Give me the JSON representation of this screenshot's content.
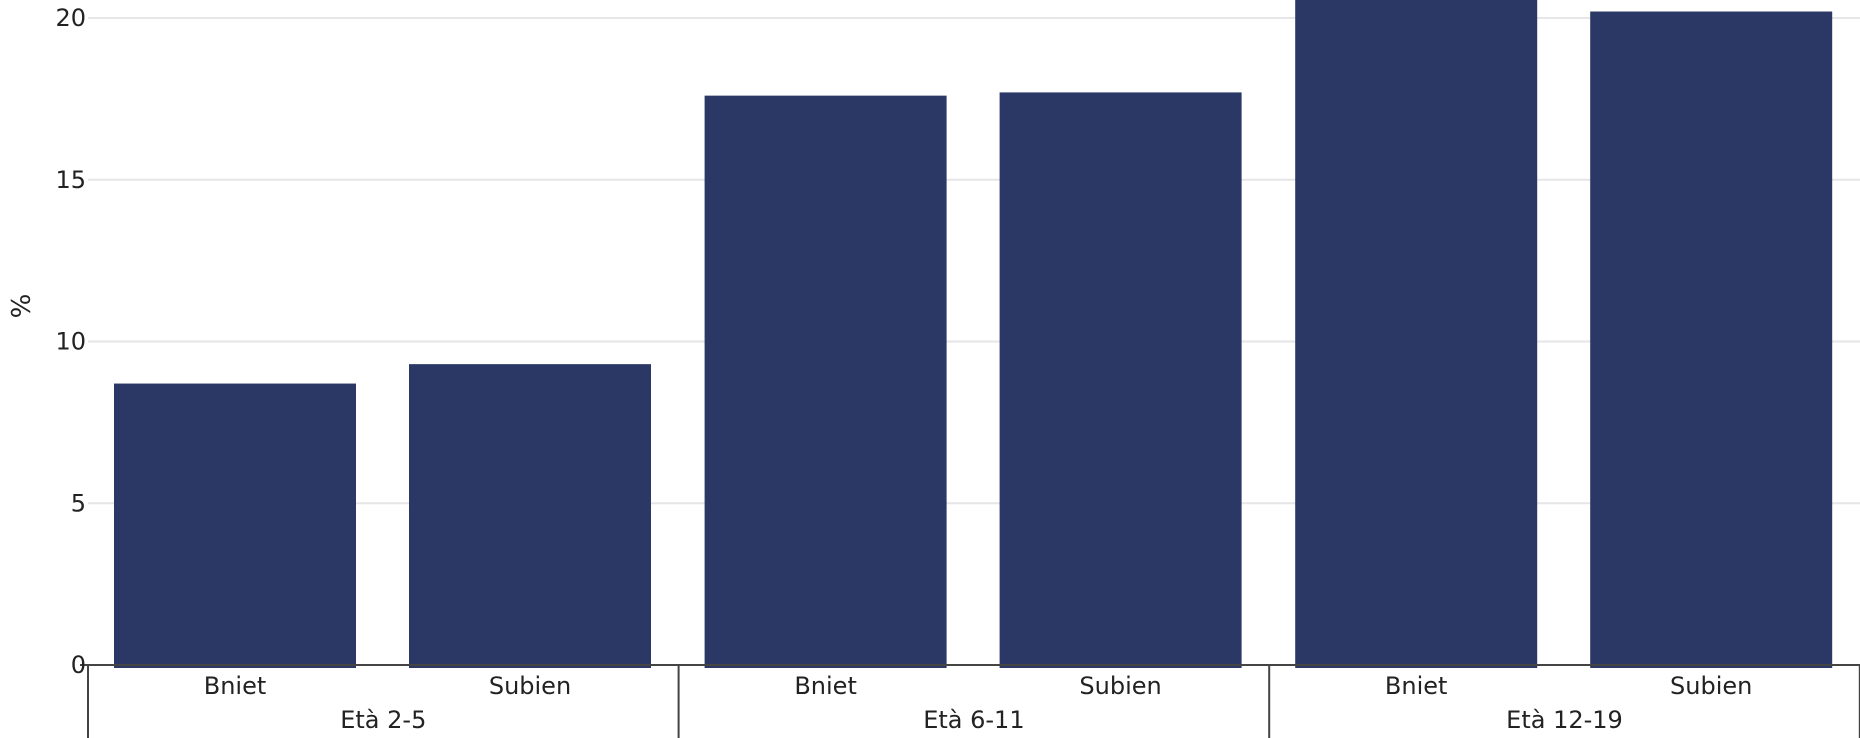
{
  "chart_data": {
    "type": "bar",
    "ylabel": "%",
    "ylim": [
      0,
      20
    ],
    "yticks": [
      0,
      5,
      10,
      15,
      20
    ],
    "grid": true,
    "bar_color": "#2b3765",
    "groups": [
      {
        "label": "Età 2-5",
        "categories": [
          "Bniet",
          "Subien"
        ],
        "values": [
          8.7,
          9.3
        ]
      },
      {
        "label": "Età 6-11",
        "categories": [
          "Bniet",
          "Subien"
        ],
        "values": [
          17.6,
          17.7
        ]
      },
      {
        "label": "Età 12-19",
        "categories": [
          "Bniet",
          "Subien"
        ],
        "values": [
          20.6,
          20.2
        ]
      }
    ]
  }
}
